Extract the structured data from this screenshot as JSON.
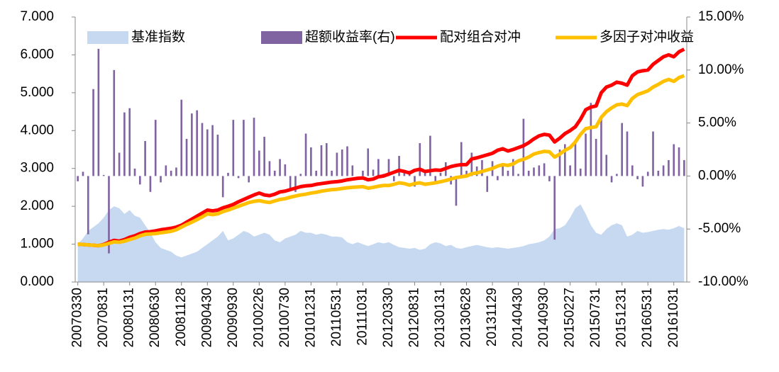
{
  "chart_data": {
    "type": "combo",
    "categories": [
      "20070330",
      null,
      null,
      null,
      null,
      "20070831",
      null,
      null,
      null,
      null,
      "20080131",
      null,
      null,
      null,
      null,
      "20080630",
      null,
      null,
      null,
      null,
      "20081128",
      null,
      null,
      null,
      null,
      "20090430",
      null,
      null,
      null,
      null,
      "20090930",
      null,
      null,
      null,
      null,
      "20100226",
      null,
      null,
      null,
      null,
      "20100730",
      null,
      null,
      null,
      null,
      "20101231",
      null,
      null,
      null,
      null,
      "20110531",
      null,
      null,
      null,
      null,
      "20111031",
      null,
      null,
      null,
      null,
      "20120330",
      null,
      null,
      null,
      null,
      "20120831",
      null,
      null,
      null,
      null,
      "20130131",
      null,
      null,
      null,
      null,
      "20130628",
      null,
      null,
      null,
      null,
      "20131129",
      null,
      null,
      null,
      null,
      "20140430",
      null,
      null,
      null,
      null,
      "20140930",
      null,
      null,
      null,
      null,
      "20150227",
      null,
      null,
      null,
      null,
      "20150731",
      null,
      null,
      null,
      null,
      "20151231",
      null,
      null,
      null,
      null,
      "20160531",
      null,
      null,
      null,
      null,
      "20161031",
      null,
      null
    ],
    "series": [
      {
        "name": "基准指数",
        "type": "area",
        "color": "#c6d9f0",
        "values": [
          1.0,
          1.15,
          1.35,
          1.45,
          1.55,
          1.7,
          1.9,
          2.0,
          1.95,
          1.8,
          1.9,
          1.75,
          1.7,
          1.5,
          1.3,
          1.05,
          0.9,
          0.85,
          0.8,
          0.7,
          0.65,
          0.7,
          0.75,
          0.8,
          0.9,
          1.0,
          1.1,
          1.2,
          1.35,
          1.1,
          1.15,
          1.25,
          1.35,
          1.3,
          1.2,
          1.25,
          1.3,
          1.25,
          1.1,
          1.05,
          1.15,
          1.2,
          1.25,
          1.35,
          1.3,
          1.3,
          1.25,
          1.28,
          1.25,
          1.2,
          1.2,
          1.18,
          1.05,
          1.0,
          1.05,
          1.0,
          0.95,
          1.0,
          1.05,
          1.02,
          1.05,
          0.98,
          0.92,
          0.9,
          0.88,
          0.9,
          0.85,
          0.88,
          1.0,
          1.05,
          1.02,
          0.95,
          0.98,
          0.9,
          0.88,
          0.92,
          0.95,
          0.98,
          0.95,
          0.92,
          0.9,
          0.92,
          0.9,
          0.88,
          0.9,
          0.92,
          0.95,
          1.0,
          1.02,
          1.05,
          1.1,
          1.2,
          1.4,
          1.42,
          1.5,
          1.7,
          1.95,
          2.05,
          1.8,
          1.5,
          1.3,
          1.25,
          1.4,
          1.5,
          1.55,
          1.5,
          1.2,
          1.25,
          1.35,
          1.3,
          1.32,
          1.35,
          1.38,
          1.4,
          1.38,
          1.42,
          1.48,
          1.42
        ]
      },
      {
        "name": "超额收益率(右)",
        "type": "bar",
        "axis": "y2",
        "color": "#8064a2",
        "values": [
          -0.5,
          0.4,
          -5.5,
          8.2,
          12.0,
          0.1,
          -7.3,
          10.0,
          2.2,
          6.0,
          6.4,
          0.7,
          -0.8,
          3.3,
          -1.5,
          5.3,
          -0.6,
          1.0,
          0.5,
          0.8,
          7.2,
          3.5,
          5.9,
          6.2,
          5.0,
          4.4,
          4.8,
          3.9,
          -2.0,
          0.3,
          5.3,
          -0.2,
          5.3,
          -0.6,
          5.5,
          2.4,
          3.7,
          1.4,
          0.5,
          1.6,
          1.1,
          -1.2,
          -1.5,
          0.2,
          4.0,
          2.7,
          0.5,
          2.9,
          3.1,
          0.5,
          2.2,
          2.5,
          2.8,
          1.0,
          0.0,
          0.5,
          2.6,
          0.6,
          1.6,
          0.2,
          1.6,
          -0.5,
          1.9,
          0.3,
          0.5,
          -1.0,
          3.1,
          0.4,
          3.8,
          -0.5,
          0.3,
          1.3,
          -0.8,
          -2.8,
          3.2,
          0.5,
          2.2,
          0.9,
          1.5,
          -1.5,
          1.4,
          -0.4,
          1.2,
          0.5,
          1.6,
          0.2,
          5.4,
          0.5,
          0.8,
          1.0,
          1.2,
          -0.5,
          -6.0,
          2.5,
          3.0,
          1.0,
          3.2,
          0.7,
          4.0,
          6.9,
          3.5,
          5.7,
          2.0,
          -0.6,
          0.2,
          5.0,
          4.2,
          1.0,
          -0.3,
          -1.0,
          0.4,
          4.2,
          0.5,
          1.0,
          1.5,
          3.0,
          2.7,
          1.5
        ]
      },
      {
        "name": "配对组合对冲",
        "type": "line",
        "color": "#ff0000",
        "values": [
          1.0,
          0.99,
          0.98,
          0.97,
          0.96,
          0.99,
          1.05,
          1.1,
          1.08,
          1.12,
          1.18,
          1.22,
          1.28,
          1.32,
          1.33,
          1.35,
          1.38,
          1.4,
          1.42,
          1.45,
          1.5,
          1.58,
          1.66,
          1.74,
          1.82,
          1.9,
          1.88,
          1.9,
          1.96,
          2.0,
          2.05,
          2.12,
          2.18,
          2.24,
          2.3,
          2.35,
          2.3,
          2.28,
          2.32,
          2.38,
          2.4,
          2.44,
          2.48,
          2.52,
          2.54,
          2.55,
          2.58,
          2.6,
          2.62,
          2.64,
          2.65,
          2.67,
          2.7,
          2.72,
          2.74,
          2.75,
          2.7,
          2.72,
          2.78,
          2.8,
          2.85,
          2.9,
          2.95,
          2.92,
          2.88,
          2.95,
          2.98,
          2.92,
          2.94,
          2.96,
          2.95,
          3.0,
          3.05,
          3.08,
          3.1,
          3.1,
          3.25,
          3.28,
          3.32,
          3.36,
          3.4,
          3.48,
          3.52,
          3.46,
          3.5,
          3.55,
          3.6,
          3.68,
          3.78,
          3.86,
          3.9,
          3.88,
          3.7,
          3.8,
          3.92,
          4.0,
          4.1,
          4.3,
          4.55,
          4.62,
          4.65,
          5.0,
          5.15,
          5.2,
          5.28,
          5.25,
          5.2,
          5.45,
          5.55,
          5.58,
          5.6,
          5.75,
          5.85,
          5.95,
          6.0,
          5.95,
          6.08,
          6.15
        ]
      },
      {
        "name": "多因子对冲收益",
        "type": "line",
        "color": "#ffc000",
        "values": [
          1.0,
          0.99,
          0.98,
          0.97,
          0.96,
          0.98,
          1.02,
          1.06,
          1.05,
          1.08,
          1.12,
          1.16,
          1.22,
          1.26,
          1.27,
          1.28,
          1.3,
          1.32,
          1.34,
          1.38,
          1.45,
          1.52,
          1.58,
          1.65,
          1.72,
          1.8,
          1.78,
          1.8,
          1.86,
          1.9,
          1.95,
          2.0,
          2.05,
          2.1,
          2.13,
          2.15,
          2.12,
          2.1,
          2.14,
          2.18,
          2.2,
          2.24,
          2.27,
          2.3,
          2.32,
          2.35,
          2.37,
          2.4,
          2.42,
          2.44,
          2.45,
          2.47,
          2.49,
          2.5,
          2.51,
          2.52,
          2.48,
          2.5,
          2.53,
          2.55,
          2.55,
          2.58,
          2.62,
          2.6,
          2.56,
          2.6,
          2.62,
          2.58,
          2.6,
          2.62,
          2.65,
          2.68,
          2.72,
          2.76,
          2.78,
          2.8,
          2.86,
          2.88,
          2.92,
          2.96,
          3.0,
          3.06,
          3.1,
          3.08,
          3.12,
          3.2,
          3.24,
          3.3,
          3.38,
          3.42,
          3.45,
          3.44,
          3.3,
          3.38,
          3.48,
          3.55,
          3.7,
          3.9,
          4.05,
          4.08,
          4.1,
          4.35,
          4.5,
          4.6,
          4.68,
          4.7,
          4.66,
          4.85,
          4.95,
          5.0,
          5.05,
          5.15,
          5.22,
          5.3,
          5.35,
          5.3,
          5.4,
          5.45
        ]
      }
    ],
    "ylim": [
      0,
      7
    ],
    "yticks": [
      {
        "value": 0,
        "label": "0.000"
      },
      {
        "value": 1,
        "label": "1.000"
      },
      {
        "value": 2,
        "label": "2.000"
      },
      {
        "value": 3,
        "label": "3.000"
      },
      {
        "value": 4,
        "label": "4.000"
      },
      {
        "value": 5,
        "label": "5.000"
      },
      {
        "value": 6,
        "label": "6.000"
      },
      {
        "value": 7,
        "label": "7.000"
      }
    ],
    "y2lim": [
      -10,
      15
    ],
    "y2ticks": [
      {
        "value": -10,
        "label": "-10.00%"
      },
      {
        "value": -5,
        "label": "-5.00%"
      },
      {
        "value": 0,
        "label": "0.00%"
      },
      {
        "value": 5,
        "label": "5.00%"
      },
      {
        "value": 10,
        "label": "10.00%"
      },
      {
        "value": 15,
        "label": "15.00%"
      }
    ],
    "legend": "top",
    "grid": false
  }
}
